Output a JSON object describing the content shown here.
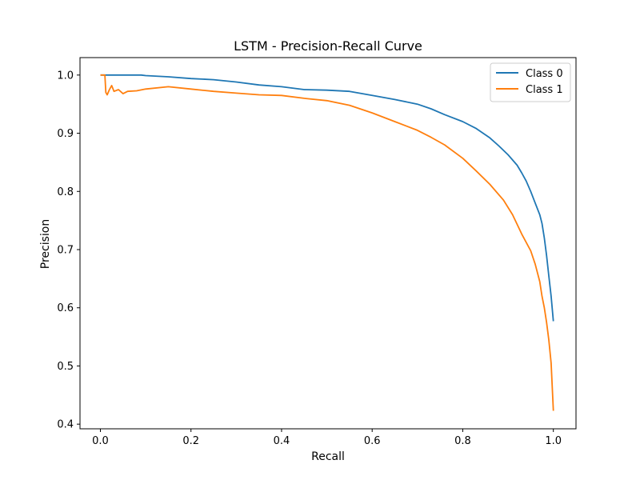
{
  "chart_data": {
    "type": "line",
    "title": "LSTM - Precision-Recall Curve",
    "xlabel": "Recall",
    "ylabel": "Precision",
    "xlim": [
      -0.045,
      1.05
    ],
    "ylim": [
      0.392,
      1.03
    ],
    "xticks": [
      0.0,
      0.2,
      0.4,
      0.6,
      0.8,
      1.0
    ],
    "yticks": [
      0.4,
      0.5,
      0.6,
      0.7,
      0.8,
      0.9,
      1.0
    ],
    "xtick_labels": [
      "0.0",
      "0.2",
      "0.4",
      "0.6",
      "0.8",
      "1.0"
    ],
    "ytick_labels": [
      "0.4",
      "0.5",
      "0.6",
      "0.7",
      "0.8",
      "0.9",
      "1.0"
    ],
    "grid": false,
    "legend_position": "top-right",
    "series": [
      {
        "name": "Class 0",
        "color": "#1f77b4",
        "x": [
          0.0,
          0.01,
          0.05,
          0.09,
          0.1,
          0.15,
          0.2,
          0.25,
          0.3,
          0.35,
          0.4,
          0.45,
          0.5,
          0.55,
          0.6,
          0.65,
          0.7,
          0.73,
          0.76,
          0.8,
          0.83,
          0.86,
          0.88,
          0.9,
          0.92,
          0.93,
          0.94,
          0.95,
          0.96,
          0.97,
          0.975,
          0.98,
          0.985,
          0.99,
          0.995,
          1.0
        ],
        "y": [
          1.0,
          1.0,
          1.0,
          1.0,
          0.999,
          0.997,
          0.994,
          0.992,
          0.988,
          0.983,
          0.98,
          0.975,
          0.974,
          0.972,
          0.965,
          0.958,
          0.95,
          0.942,
          0.932,
          0.92,
          0.908,
          0.892,
          0.878,
          0.863,
          0.845,
          0.832,
          0.818,
          0.8,
          0.78,
          0.76,
          0.745,
          0.72,
          0.69,
          0.655,
          0.62,
          0.577
        ]
      },
      {
        "name": "Class 1",
        "color": "#ff7f0e",
        "x": [
          0.0,
          0.01,
          0.012,
          0.015,
          0.02,
          0.025,
          0.03,
          0.04,
          0.05,
          0.06,
          0.08,
          0.1,
          0.15,
          0.2,
          0.25,
          0.3,
          0.35,
          0.4,
          0.45,
          0.5,
          0.55,
          0.6,
          0.65,
          0.7,
          0.73,
          0.76,
          0.8,
          0.83,
          0.86,
          0.89,
          0.91,
          0.93,
          0.95,
          0.96,
          0.97,
          0.975,
          0.98,
          0.985,
          0.99,
          0.995,
          1.0
        ],
        "y": [
          1.0,
          1.0,
          0.97,
          0.966,
          0.975,
          0.982,
          0.972,
          0.975,
          0.968,
          0.972,
          0.973,
          0.976,
          0.98,
          0.976,
          0.972,
          0.969,
          0.966,
          0.965,
          0.96,
          0.956,
          0.948,
          0.935,
          0.92,
          0.905,
          0.893,
          0.88,
          0.857,
          0.835,
          0.812,
          0.785,
          0.76,
          0.727,
          0.698,
          0.675,
          0.645,
          0.62,
          0.6,
          0.575,
          0.545,
          0.505,
          0.423
        ]
      }
    ]
  }
}
